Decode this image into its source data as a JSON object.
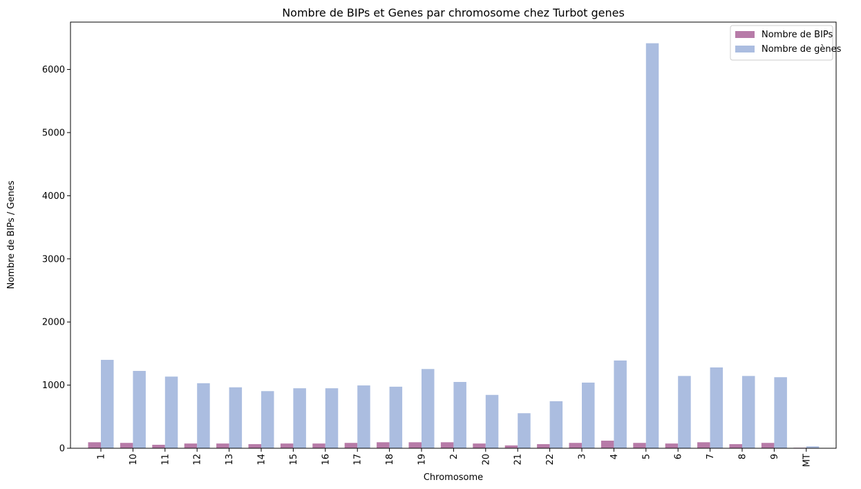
{
  "chart_data": {
    "type": "bar",
    "title": "Nombre de BIPs et Genes par chromosome chez Turbot genes",
    "xlabel": "Chromosome",
    "ylabel": "Nombre de BIPs / Genes",
    "categories": [
      "1",
      "10",
      "11",
      "12",
      "13",
      "14",
      "15",
      "16",
      "17",
      "18",
      "19",
      "2",
      "20",
      "21",
      "22",
      "3",
      "4",
      "5",
      "6",
      "7",
      "8",
      "9",
      "MT"
    ],
    "series": [
      {
        "name": "Nombre de BIPs",
        "color": "#b77ba8",
        "values": [
          95,
          85,
          55,
          75,
          75,
          65,
          75,
          75,
          85,
          95,
          95,
          95,
          75,
          45,
          65,
          85,
          120,
          85,
          75,
          95,
          65,
          85,
          8
        ]
      },
      {
        "name": "Nombre de gènes",
        "color": "#abbde0",
        "values": [
          1400,
          1225,
          1135,
          1030,
          965,
          905,
          950,
          950,
          995,
          975,
          1255,
          1050,
          845,
          555,
          745,
          1040,
          1390,
          6415,
          1145,
          1280,
          1145,
          1125,
          30
        ]
      }
    ],
    "ylim": [
      0,
      6750
    ],
    "yticks": [
      0,
      1000,
      2000,
      3000,
      4000,
      5000,
      6000
    ],
    "legend_position": "top-right",
    "grid": false
  }
}
